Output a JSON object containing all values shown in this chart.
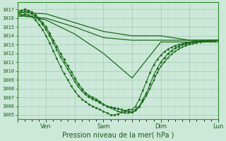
{
  "xlabel": "Pression niveau de la mer( hPa )",
  "bg_color": "#cce8d8",
  "grid_major_color": "#aaccbb",
  "grid_minor_color": "#bbddcc",
  "line_color": "#1a6b1a",
  "ylim": [
    1004.5,
    1017.8
  ],
  "yticks": [
    1005,
    1006,
    1007,
    1008,
    1009,
    1010,
    1011,
    1012,
    1013,
    1014,
    1015,
    1016,
    1017
  ],
  "xlim": [
    0,
    168
  ],
  "xtick_positions": [
    0,
    24,
    48,
    72,
    96,
    120,
    144,
    168
  ],
  "xtick_labels": [
    "",
    "Ven",
    "",
    "Sam",
    "",
    "Dim",
    "",
    "Lun"
  ],
  "series": [
    {
      "x": [
        0,
        24,
        48,
        72,
        96,
        120,
        144,
        168
      ],
      "y": [
        1016.7,
        1016.5,
        1015.5,
        1014.5,
        1014.0,
        1014.0,
        1013.5,
        1013.5
      ],
      "marker": null,
      "lw": 0.9,
      "ms": 0
    },
    {
      "x": [
        0,
        24,
        48,
        72,
        96,
        120,
        144,
        168
      ],
      "y": [
        1016.3,
        1016.0,
        1015.0,
        1013.8,
        1013.5,
        1013.5,
        1013.5,
        1013.5
      ],
      "marker": null,
      "lw": 0.9,
      "ms": 0
    },
    {
      "x": [
        0,
        24,
        48,
        72,
        96,
        120,
        144,
        168
      ],
      "y": [
        1016.5,
        1015.8,
        1014.2,
        1012.0,
        1009.2,
        1013.3,
        1013.3,
        1013.3
      ],
      "marker": null,
      "lw": 0.9,
      "ms": 0
    },
    {
      "x": [
        0,
        3,
        6,
        9,
        12,
        15,
        18,
        21,
        24,
        27,
        30,
        33,
        36,
        39,
        42,
        45,
        48,
        51,
        54,
        57,
        60,
        63,
        66,
        69,
        72,
        75,
        78,
        81,
        84,
        87,
        90,
        93,
        96,
        99,
        102,
        105,
        108,
        111,
        114,
        117,
        120,
        123,
        126,
        129,
        132,
        135,
        138,
        141,
        144,
        147,
        150,
        153,
        156,
        159,
        162,
        165,
        168
      ],
      "y": [
        1016.8,
        1016.9,
        1017.0,
        1016.9,
        1016.7,
        1016.4,
        1016.0,
        1015.5,
        1015.0,
        1014.3,
        1013.5,
        1012.8,
        1012.0,
        1011.3,
        1010.6,
        1009.9,
        1009.2,
        1008.5,
        1008.0,
        1007.5,
        1007.2,
        1007.0,
        1006.8,
        1006.5,
        1006.2,
        1006.0,
        1005.9,
        1005.8,
        1005.7,
        1005.6,
        1005.5,
        1005.4,
        1005.3,
        1005.6,
        1006.0,
        1006.8,
        1007.5,
        1008.5,
        1009.5,
        1010.3,
        1011.0,
        1011.5,
        1012.0,
        1012.3,
        1012.6,
        1012.8,
        1013.0,
        1013.1,
        1013.2,
        1013.25,
        1013.3,
        1013.35,
        1013.4,
        1013.4,
        1013.45,
        1013.45,
        1013.5
      ],
      "marker": "D",
      "lw": 0.8,
      "ms": 1.8
    },
    {
      "x": [
        0,
        3,
        6,
        9,
        12,
        15,
        18,
        21,
        24,
        27,
        30,
        33,
        36,
        39,
        42,
        45,
        48,
        51,
        54,
        57,
        60,
        63,
        66,
        69,
        72,
        75,
        78,
        81,
        84,
        87,
        90,
        93,
        96,
        99,
        102,
        105,
        108,
        111,
        114,
        117,
        120,
        123,
        126,
        129,
        132,
        135,
        138,
        141,
        144,
        147,
        150,
        153,
        156,
        159,
        162,
        165,
        168
      ],
      "y": [
        1016.5,
        1016.6,
        1016.8,
        1016.7,
        1016.5,
        1016.2,
        1015.8,
        1015.3,
        1014.7,
        1014.0,
        1013.2,
        1012.4,
        1011.6,
        1010.9,
        1010.2,
        1009.5,
        1008.8,
        1008.2,
        1007.7,
        1007.3,
        1007.0,
        1006.8,
        1006.6,
        1006.4,
        1006.2,
        1006.0,
        1005.8,
        1005.6,
        1005.4,
        1005.3,
        1005.2,
        1005.2,
        1005.3,
        1005.5,
        1005.9,
        1006.5,
        1007.2,
        1008.0,
        1008.9,
        1009.8,
        1010.5,
        1011.0,
        1011.5,
        1011.9,
        1012.2,
        1012.5,
        1012.7,
        1012.9,
        1013.0,
        1013.1,
        1013.2,
        1013.3,
        1013.35,
        1013.4,
        1013.4,
        1013.45,
        1013.5
      ],
      "marker": "s",
      "lw": 0.8,
      "ms": 1.8
    },
    {
      "x": [
        0,
        3,
        6,
        9,
        12,
        15,
        18,
        21,
        24,
        27,
        30,
        33,
        36,
        39,
        42,
        45,
        48,
        51,
        54,
        57,
        60,
        63,
        66,
        69,
        72,
        75,
        78,
        81,
        84,
        87,
        90,
        93,
        96,
        99,
        102,
        105,
        108,
        111,
        114,
        117,
        120,
        123,
        126,
        129,
        132,
        135,
        138,
        141,
        144,
        147,
        150,
        153,
        156,
        159,
        162,
        165,
        168
      ],
      "y": [
        1016.2,
        1016.3,
        1016.5,
        1016.4,
        1016.2,
        1015.8,
        1015.3,
        1014.7,
        1014.0,
        1013.2,
        1012.3,
        1011.4,
        1010.5,
        1009.7,
        1009.0,
        1008.3,
        1007.7,
        1007.2,
        1006.8,
        1006.5,
        1006.2,
        1006.0,
        1005.8,
        1005.6,
        1005.4,
        1005.2,
        1005.0,
        1005.0,
        1005.1,
        1005.3,
        1005.5,
        1005.6,
        1005.6,
        1006.0,
        1006.8,
        1007.8,
        1008.8,
        1009.8,
        1010.7,
        1011.3,
        1011.8,
        1012.2,
        1012.5,
        1012.7,
        1012.9,
        1013.0,
        1013.1,
        1013.2,
        1013.3,
        1013.35,
        1013.4,
        1013.4,
        1013.45,
        1013.45,
        1013.5,
        1013.5,
        1013.5
      ],
      "marker": "o",
      "lw": 0.8,
      "ms": 1.8
    }
  ]
}
